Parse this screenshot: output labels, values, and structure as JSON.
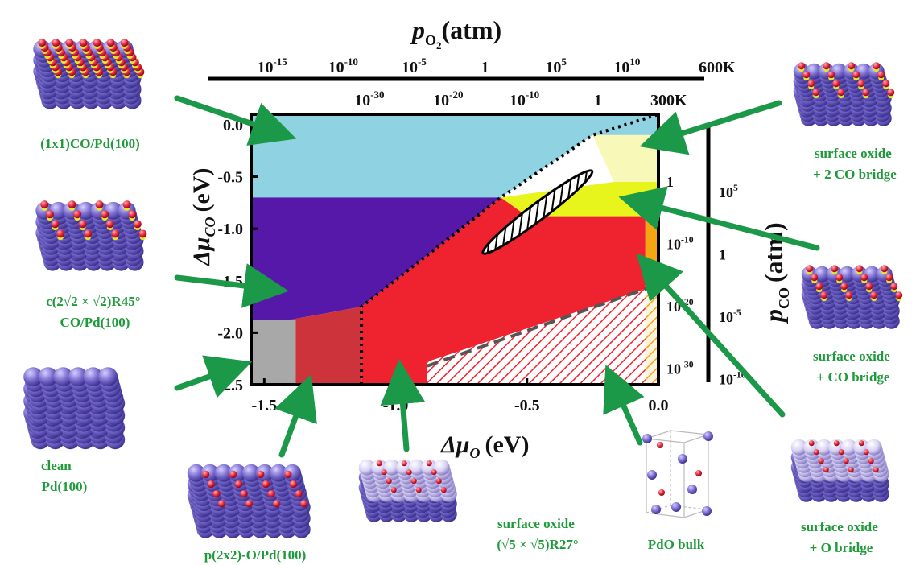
{
  "chart_data": {
    "type": "heatmap",
    "xlabel": "Δμ",
    "xlabel_sub": "O",
    "xlabel_unit": "(eV)",
    "ylabel": "Δμ",
    "ylabel_sub": "CO",
    "ylabel_unit": "(eV)",
    "x_ticks": [
      "-1.5",
      "-1.0",
      "-0.5",
      "0.0"
    ],
    "y_ticks": [
      "0.0",
      "-0.5",
      "-1.0",
      "-1.5",
      "-2.0",
      "-2.5"
    ],
    "xlim": [
      -1.55,
      0.0
    ],
    "ylim": [
      -2.5,
      0.1
    ],
    "top_axis": {
      "label_p": "p",
      "label_sub": "O",
      "label_sub2": "2",
      "label_unit": "(atm)",
      "row_600K": {
        "temperature": "600K",
        "ticks": [
          {
            "base": "10",
            "exp": "-15",
            "mu": -1.47
          },
          {
            "base": "10",
            "exp": "-10",
            "mu": -1.2
          },
          {
            "base": "10",
            "exp": "-5",
            "mu": -0.93
          },
          {
            "base": "1",
            "exp": "",
            "mu": -0.66
          },
          {
            "base": "10",
            "exp": "5",
            "mu": -0.39
          },
          {
            "base": "10",
            "exp": "10",
            "mu": -0.12
          }
        ]
      },
      "row_300K": {
        "temperature": "300K",
        "ticks": [
          {
            "base": "10",
            "exp": "-30",
            "mu": -1.1
          },
          {
            "base": "10",
            "exp": "-20",
            "mu": -0.8
          },
          {
            "base": "10",
            "exp": "-10",
            "mu": -0.51
          },
          {
            "base": "1",
            "exp": "",
            "mu": -0.23
          }
        ]
      }
    },
    "right_axis": {
      "label_p": "p",
      "label_sub": "CO",
      "label_unit": "(atm)",
      "row_300K": [
        {
          "base": "1",
          "exp": "",
          "mu": -0.55
        },
        {
          "base": "10",
          "exp": "-10",
          "mu": -1.15
        },
        {
          "base": "10",
          "exp": "-20",
          "mu": -1.75
        },
        {
          "base": "10",
          "exp": "-30",
          "mu": -2.35
        }
      ],
      "row_600K": [
        {
          "base": "10",
          "exp": "5",
          "mu": -0.65
        },
        {
          "base": "1",
          "exp": "",
          "mu": -1.25
        },
        {
          "base": "10",
          "exp": "-5",
          "mu": -1.85
        },
        {
          "base": "10",
          "exp": "-10",
          "mu": -2.45
        }
      ]
    },
    "regions": [
      {
        "name": "(1x1)CO/Pd(100)",
        "color": "#8fd3e3",
        "polygon": [
          [
            -1.55,
            0.1
          ],
          [
            0.0,
            0.1
          ],
          [
            0.0,
            -0.1
          ],
          [
            -0.25,
            -0.1
          ],
          [
            -0.6,
            -0.7
          ],
          [
            -1.55,
            -0.7
          ]
        ]
      },
      {
        "name": "surface oxide + 2 CO bridge",
        "color": "#f8f8b8",
        "polygon": [
          [
            -0.25,
            -0.1
          ],
          [
            0.0,
            -0.1
          ],
          [
            0.0,
            -0.55
          ],
          [
            -0.05,
            -0.55
          ],
          [
            -0.17,
            -0.55
          ]
        ]
      },
      {
        "name": "c(2√2 × √2)R45° CO/Pd(100)",
        "color": "#5518a8",
        "polygon": [
          [
            -1.55,
            -0.7
          ],
          [
            -0.6,
            -0.7
          ],
          [
            -1.13,
            -1.75
          ],
          [
            -1.41,
            -1.88
          ],
          [
            -1.55,
            -1.88
          ]
        ]
      },
      {
        "name": "surface oxide + CO bridge",
        "color": "#e7f51c",
        "polygon": [
          [
            -0.6,
            -0.7
          ],
          [
            -0.17,
            -0.55
          ],
          [
            0.0,
            -0.55
          ],
          [
            0.0,
            -0.88
          ],
          [
            -0.5,
            -0.88
          ]
        ]
      },
      {
        "name": "surface oxide + O bridge",
        "color": "#f4a512",
        "polygon": [
          [
            -0.05,
            -0.88
          ],
          [
            0.0,
            -0.88
          ],
          [
            0.0,
            -1.47
          ],
          [
            -0.05,
            -1.58
          ]
        ]
      },
      {
        "name": "surface oxide (√5 × √5)R27°",
        "color": "#ef2230",
        "polygon": [
          [
            -0.6,
            -0.7
          ],
          [
            -0.5,
            -0.88
          ],
          [
            -0.05,
            -0.88
          ],
          [
            -0.05,
            -1.58
          ],
          [
            -0.88,
            -2.28
          ],
          [
            -0.88,
            -2.5
          ],
          [
            -1.13,
            -2.5
          ],
          [
            -1.13,
            -1.75
          ]
        ]
      },
      {
        "name": "PdO bulk",
        "color": "#ffffff",
        "hatch": "#ef2230",
        "polygon": [
          [
            -0.88,
            -2.28
          ],
          [
            -0.05,
            -1.58
          ],
          [
            0.0,
            -1.47
          ],
          [
            0.0,
            -2.5
          ],
          [
            -0.88,
            -2.5
          ]
        ]
      },
      {
        "name": "p(2x2)-O/Pd(100)",
        "color": "#cc333a",
        "polygon": [
          [
            -1.41,
            -1.88
          ],
          [
            -1.13,
            -1.75
          ],
          [
            -1.13,
            -2.5
          ],
          [
            -1.38,
            -2.5
          ],
          [
            -1.38,
            -1.88
          ]
        ]
      },
      {
        "name": "clean Pd(100)",
        "color": "#a8a8a8",
        "polygon": [
          [
            -1.55,
            -1.88
          ],
          [
            -1.38,
            -1.88
          ],
          [
            -1.38,
            -2.5
          ],
          [
            -1.55,
            -2.5
          ]
        ]
      }
    ],
    "hatched_ellipse": {
      "cx": -0.46,
      "cy": -0.84,
      "rx": 0.26,
      "ry": 0.05,
      "angle_deg": -37
    }
  },
  "labels": {
    "l1": [
      "(1x1)CO/Pd(100)"
    ],
    "l2": [
      "c(2√2 × √2)R45°",
      "CO/Pd(100)"
    ],
    "l3": [
      "clean",
      "Pd(100)"
    ],
    "l4": [
      "p(2x2)-O/Pd(100)"
    ],
    "l5": [
      "surface oxide",
      "(√5 × √5)R27°"
    ],
    "l6": [
      "PdO bulk"
    ],
    "l7": [
      "surface oxide",
      "+ O bridge"
    ],
    "l8": [
      "surface oxide",
      "+ CO bridge"
    ],
    "l9": [
      "surface oxide",
      "+ 2 CO bridge"
    ]
  },
  "colors": {
    "label_green": "#1f9a3a",
    "arrow_green": "#1b9848",
    "atom_pd": "#7c6fd0",
    "atom_o": "#e8233a",
    "atom_c": "#e6e62a"
  }
}
